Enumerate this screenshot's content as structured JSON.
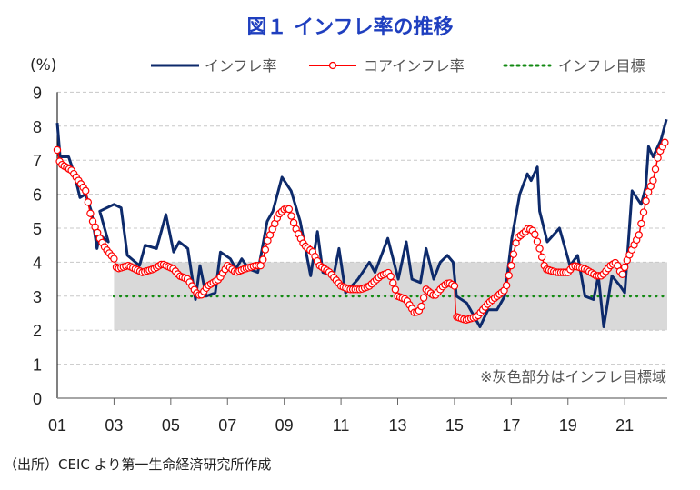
{
  "title": "図１ インフレ率の推移",
  "source": "（出所）CEIC より第一生命経済研究所作成",
  "chart_data": {
    "type": "line",
    "title": "図１ インフレ率の推移",
    "ylabel": "(%)",
    "xlabel": "",
    "ylim": [
      0,
      9
    ],
    "xlim": [
      2001.0,
      2022.5
    ],
    "yticks": [
      "0",
      "1",
      "2",
      "3",
      "4",
      "5",
      "6",
      "7",
      "8",
      "9"
    ],
    "xticks": [
      "01",
      "03",
      "05",
      "07",
      "09",
      "11",
      "13",
      "15",
      "17",
      "19",
      "21"
    ],
    "grid": "horizontal dashed",
    "legend_position": "top-right",
    "note": "※灰色部分はインフレ目標域",
    "target_band": {
      "from_year": 2003.0,
      "low": 2,
      "high": 4
    },
    "colors": {
      "inflation": "#0d2a6b",
      "core": "#ff0000",
      "target": "#138a13",
      "band": "#d9d9d9",
      "title": "#1f3fbf"
    },
    "series": [
      {
        "name": "インフレ率",
        "style": "line",
        "points": [
          [
            2001.0,
            8.1
          ],
          [
            2001.1,
            7.1
          ],
          [
            2001.4,
            7.1
          ],
          [
            2001.6,
            6.6
          ],
          [
            2001.8,
            5.9
          ],
          [
            2002.0,
            6.0
          ],
          [
            2002.2,
            5.5
          ],
          [
            2002.4,
            4.4
          ],
          [
            2002.5,
            4.8
          ],
          [
            2002.8,
            4.6
          ],
          [
            2002.5,
            5.5
          ],
          [
            2003.0,
            5.7
          ],
          [
            2003.25,
            5.6
          ],
          [
            2003.47,
            4.2
          ],
          [
            2003.9,
            3.9
          ],
          [
            2004.1,
            4.5
          ],
          [
            2004.5,
            4.4
          ],
          [
            2004.83,
            5.4
          ],
          [
            2005.1,
            4.3
          ],
          [
            2005.3,
            4.6
          ],
          [
            2005.6,
            4.4
          ],
          [
            2005.87,
            2.9
          ],
          [
            2006.03,
            3.9
          ],
          [
            2006.25,
            3.0
          ],
          [
            2006.57,
            3.1
          ],
          [
            2006.75,
            4.3
          ],
          [
            2007.1,
            4.1
          ],
          [
            2007.3,
            3.8
          ],
          [
            2007.5,
            4.1
          ],
          [
            2007.75,
            3.8
          ],
          [
            2008.07,
            3.7
          ],
          [
            2008.4,
            5.2
          ],
          [
            2008.6,
            5.5
          ],
          [
            2008.92,
            6.5
          ],
          [
            2009.24,
            6.1
          ],
          [
            2009.56,
            5.2
          ],
          [
            2009.93,
            3.6
          ],
          [
            2010.17,
            4.9
          ],
          [
            2010.36,
            3.7
          ],
          [
            2010.74,
            3.6
          ],
          [
            2010.93,
            4.4
          ],
          [
            2011.16,
            3.1
          ],
          [
            2011.6,
            3.5
          ],
          [
            2012.0,
            4.0
          ],
          [
            2012.2,
            3.7
          ],
          [
            2012.65,
            4.7
          ],
          [
            2013.02,
            3.5
          ],
          [
            2013.3,
            4.6
          ],
          [
            2013.5,
            3.5
          ],
          [
            2013.8,
            3.4
          ],
          [
            2014.0,
            4.4
          ],
          [
            2014.27,
            3.5
          ],
          [
            2014.5,
            4.0
          ],
          [
            2014.75,
            4.2
          ],
          [
            2014.95,
            4.0
          ],
          [
            2015.07,
            3.0
          ],
          [
            2015.43,
            2.8
          ],
          [
            2015.9,
            2.1
          ],
          [
            2016.18,
            2.6
          ],
          [
            2016.5,
            2.6
          ],
          [
            2016.77,
            3.0
          ],
          [
            2017.02,
            4.7
          ],
          [
            2017.3,
            6.0
          ],
          [
            2017.57,
            6.6
          ],
          [
            2017.7,
            6.4
          ],
          [
            2017.92,
            6.8
          ],
          [
            2018.0,
            5.5
          ],
          [
            2018.27,
            4.6
          ],
          [
            2018.7,
            5.0
          ],
          [
            2019.07,
            3.9
          ],
          [
            2019.34,
            4.2
          ],
          [
            2019.6,
            3.0
          ],
          [
            2019.9,
            2.9
          ],
          [
            2020.07,
            3.6
          ],
          [
            2020.26,
            2.1
          ],
          [
            2020.55,
            3.6
          ],
          [
            2020.84,
            3.3
          ],
          [
            2021.0,
            3.1
          ],
          [
            2021.26,
            6.1
          ],
          [
            2021.58,
            5.7
          ],
          [
            2021.74,
            6.2
          ],
          [
            2021.84,
            7.4
          ],
          [
            2022.0,
            7.1
          ],
          [
            2022.28,
            7.6
          ],
          [
            2022.47,
            8.2
          ]
        ]
      },
      {
        "name": "コアインフレ率",
        "style": "line-marker",
        "points": [
          [
            2001.0,
            7.3
          ],
          [
            2001.1,
            6.9
          ],
          [
            2001.5,
            6.7
          ],
          [
            2002.0,
            6.1
          ],
          [
            2002.1,
            5.7
          ],
          [
            2002.2,
            5.3
          ],
          [
            2002.5,
            4.7
          ],
          [
            2002.7,
            4.4
          ],
          [
            2003.0,
            4.1
          ],
          [
            2003.1,
            3.8
          ],
          [
            2003.5,
            3.9
          ],
          [
            2004.0,
            3.7
          ],
          [
            2004.4,
            3.8
          ],
          [
            2004.7,
            3.95
          ],
          [
            2005.1,
            3.8
          ],
          [
            2005.3,
            3.6
          ],
          [
            2005.6,
            3.5
          ],
          [
            2005.9,
            3.1
          ],
          [
            2006.05,
            3.0
          ],
          [
            2006.3,
            3.3
          ],
          [
            2006.7,
            3.5
          ],
          [
            2007.0,
            3.9
          ],
          [
            2007.3,
            3.7
          ],
          [
            2007.6,
            3.8
          ],
          [
            2008.0,
            3.9
          ],
          [
            2008.2,
            3.9
          ],
          [
            2008.4,
            4.6
          ],
          [
            2008.6,
            5.0
          ],
          [
            2008.8,
            5.4
          ],
          [
            2009.0,
            5.55
          ],
          [
            2009.15,
            5.6
          ],
          [
            2009.4,
            5.0
          ],
          [
            2009.7,
            4.5
          ],
          [
            2010.0,
            4.3
          ],
          [
            2010.25,
            3.9
          ],
          [
            2010.6,
            3.7
          ],
          [
            2011.0,
            3.3
          ],
          [
            2011.3,
            3.2
          ],
          [
            2011.7,
            3.2
          ],
          [
            2012.0,
            3.3
          ],
          [
            2012.4,
            3.6
          ],
          [
            2012.7,
            3.7
          ],
          [
            2013.0,
            3.0
          ],
          [
            2013.3,
            2.9
          ],
          [
            2013.6,
            2.5
          ],
          [
            2013.8,
            2.6
          ],
          [
            2014.0,
            3.2
          ],
          [
            2014.3,
            3.0
          ],
          [
            2014.6,
            3.3
          ],
          [
            2014.8,
            3.4
          ],
          [
            2015.0,
            3.3
          ],
          [
            2015.05,
            2.4
          ],
          [
            2015.4,
            2.3
          ],
          [
            2015.8,
            2.4
          ],
          [
            2016.2,
            2.8
          ],
          [
            2016.5,
            3.0
          ],
          [
            2016.8,
            3.2
          ],
          [
            2017.0,
            3.9
          ],
          [
            2017.2,
            4.7
          ],
          [
            2017.5,
            4.9
          ],
          [
            2017.6,
            5.0
          ],
          [
            2017.8,
            4.9
          ],
          [
            2018.0,
            4.4
          ],
          [
            2018.2,
            3.8
          ],
          [
            2018.6,
            3.7
          ],
          [
            2019.0,
            3.7
          ],
          [
            2019.2,
            3.9
          ],
          [
            2019.6,
            3.8
          ],
          [
            2020.0,
            3.6
          ],
          [
            2020.2,
            3.6
          ],
          [
            2020.5,
            3.9
          ],
          [
            2020.7,
            4.0
          ],
          [
            2020.9,
            3.6
          ],
          [
            2021.1,
            4.1
          ],
          [
            2021.5,
            4.8
          ],
          [
            2021.8,
            6.0
          ],
          [
            2022.0,
            6.4
          ],
          [
            2022.2,
            7.2
          ],
          [
            2022.47,
            7.6
          ]
        ]
      },
      {
        "name": "インフレ目標",
        "style": "dotted",
        "points": [
          [
            2003.0,
            3
          ],
          [
            2022.47,
            3
          ]
        ]
      }
    ]
  }
}
